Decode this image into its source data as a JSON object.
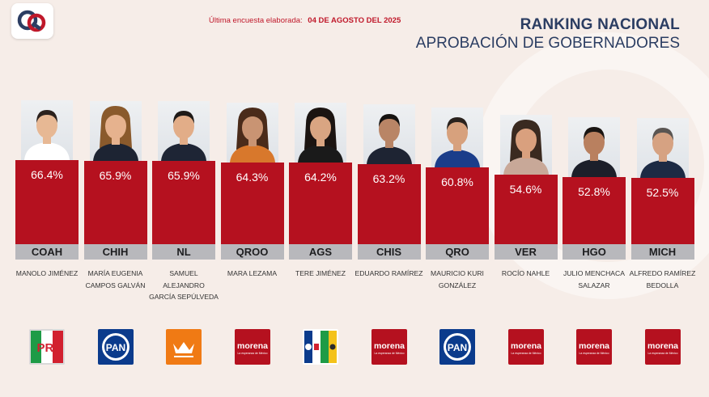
{
  "header": {
    "survey_label": "Última encuesta elaborada:",
    "survey_date": "04 DE AGOSTO DEL 2025",
    "title": "RANKING NACIONAL",
    "subtitle": "APROBACIÓN DE GOBERNADORES"
  },
  "colors": {
    "bar": "#b5111f",
    "title": "#2b3d62",
    "state_band": "#b8b8bc",
    "accent": "#c0182a"
  },
  "chart_data": {
    "type": "bar",
    "unit": "%",
    "ylim": [
      0,
      100
    ],
    "grid": false,
    "legend": "none",
    "categories": [
      "COAH",
      "CHIH",
      "NL",
      "QROO",
      "AGS",
      "CHIS",
      "QRO",
      "VER",
      "HGO",
      "MICH"
    ],
    "labels": [
      "66.4%",
      "65.9%",
      "65.9%",
      "64.3%",
      "64.2%",
      "63.2%",
      "60.8%",
      "54.6%",
      "52.8%",
      "52.5%"
    ],
    "values": [
      66.4,
      65.9,
      65.9,
      64.3,
      64.2,
      63.2,
      60.8,
      54.6,
      52.8,
      52.5
    ]
  },
  "governors": [
    {
      "state": "COAH",
      "name": "Manolo Jiménez",
      "party": "pri",
      "value": 66.4,
      "label": "66.4%"
    },
    {
      "state": "CHIH",
      "name": "María Eugenia Campos Galván",
      "party": "pan",
      "value": 65.9,
      "label": "65.9%"
    },
    {
      "state": "NL",
      "name": "Samuel Alejandro García Sepúlveda",
      "party": "mc",
      "value": 65.9,
      "label": "65.9%"
    },
    {
      "state": "QROO",
      "name": "Mara Lezama",
      "party": "morena",
      "value": 64.3,
      "label": "64.3%"
    },
    {
      "state": "AGS",
      "name": "Tere Jiménez",
      "party": "coalition",
      "value": 64.2,
      "label": "64.2%"
    },
    {
      "state": "CHIS",
      "name": "Eduardo Ramírez",
      "party": "morena",
      "value": 63.2,
      "label": "63.2%"
    },
    {
      "state": "QRO",
      "name": "Mauricio Kuri González",
      "party": "pan",
      "value": 60.8,
      "label": "60.8%"
    },
    {
      "state": "VER",
      "name": "Rocío Nahle",
      "party": "morena",
      "value": 54.6,
      "label": "54.6%"
    },
    {
      "state": "HGO",
      "name": "Julio Menchaca Salazar",
      "party": "morena",
      "value": 52.8,
      "label": "52.8%"
    },
    {
      "state": "MICH",
      "name": "Alfredo Ramírez Bedolla",
      "party": "morena",
      "value": 52.5,
      "label": "52.5%"
    }
  ],
  "party_labels": {
    "pri": "PRI",
    "pan": "PAN",
    "morena": "morena",
    "morena_tagline": "La esperanza de México"
  },
  "icons": {
    "logo": "brand-logo-icon",
    "photo": "portrait-photo",
    "pri": "pri-party-logo",
    "pan": "pan-party-logo",
    "mc": "movimiento-ciudadano-logo",
    "morena": "morena-party-logo",
    "coalition": "coalition-party-logo"
  }
}
